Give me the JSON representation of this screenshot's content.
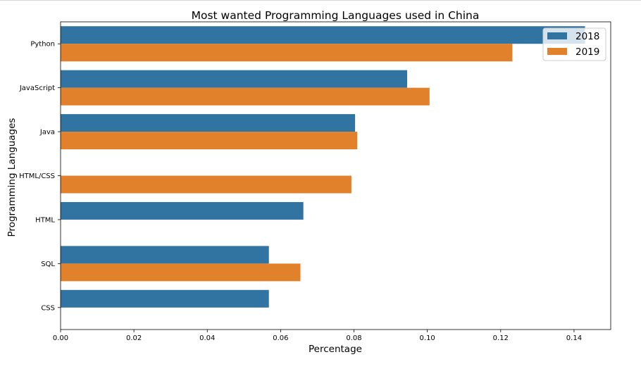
{
  "chart_data": {
    "type": "bar",
    "orientation": "horizontal",
    "title": "Most wanted Programming Languages used in China",
    "xlabel": "Percentage",
    "ylabel": "Programming Languages",
    "categories": [
      "Python",
      "JavaScript",
      "Java",
      "HTML/CSS",
      "HTML",
      "SQL",
      "CSS"
    ],
    "series": [
      {
        "name": "2018",
        "color": "#3274a1",
        "values": [
          0.143,
          0.0945,
          0.0803,
          null,
          0.0662,
          0.0568,
          0.0568
        ]
      },
      {
        "name": "2019",
        "color": "#e1812c",
        "values": [
          0.1232,
          0.1006,
          0.0809,
          0.0793,
          null,
          0.0654,
          null
        ]
      }
    ],
    "xlim": [
      0,
      0.15
    ],
    "xticks": [
      "0.00",
      "0.02",
      "0.04",
      "0.06",
      "0.08",
      "0.10",
      "0.12",
      "0.14"
    ],
    "grid": false,
    "legend_position": "top-right"
  }
}
